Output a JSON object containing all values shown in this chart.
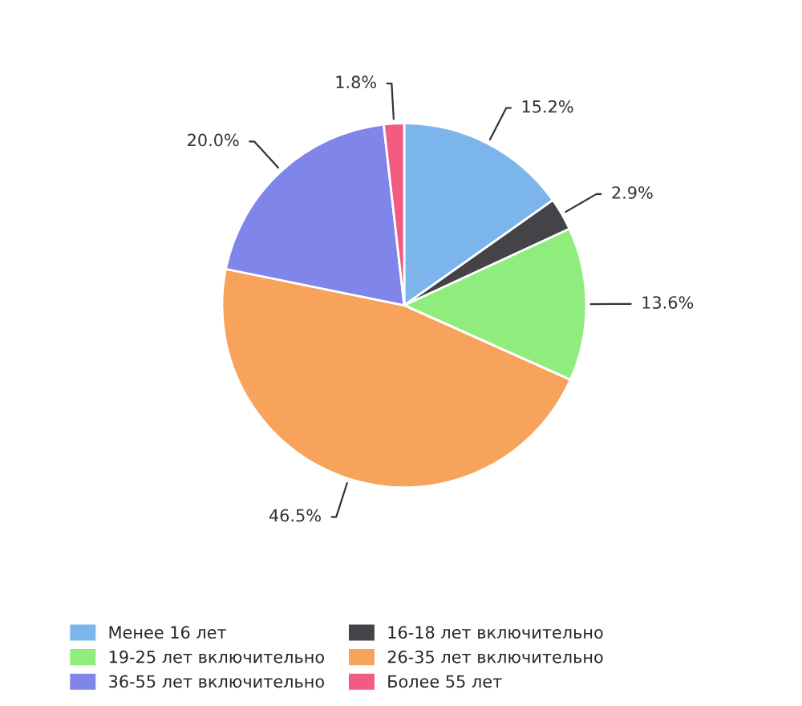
{
  "chart_data": {
    "type": "pie",
    "categories": [
      "Менее 16 лет",
      "16-18 лет включительно",
      "19-25 лет включительно",
      "26-35 лет включительно",
      "36-55 лет включительно",
      "Более 55 лет"
    ],
    "values": [
      15.2,
      2.9,
      13.6,
      46.5,
      20.0,
      1.8
    ],
    "colors": [
      "#7cb5ec",
      "#434348",
      "#90ed7d",
      "#f7a35c",
      "#8085e9",
      "#f15c80"
    ],
    "value_labels": [
      "15.2%",
      "2.9%",
      "13.6%",
      "46.5%",
      "20.0%",
      "1.8%"
    ],
    "legend": "bottom left"
  }
}
